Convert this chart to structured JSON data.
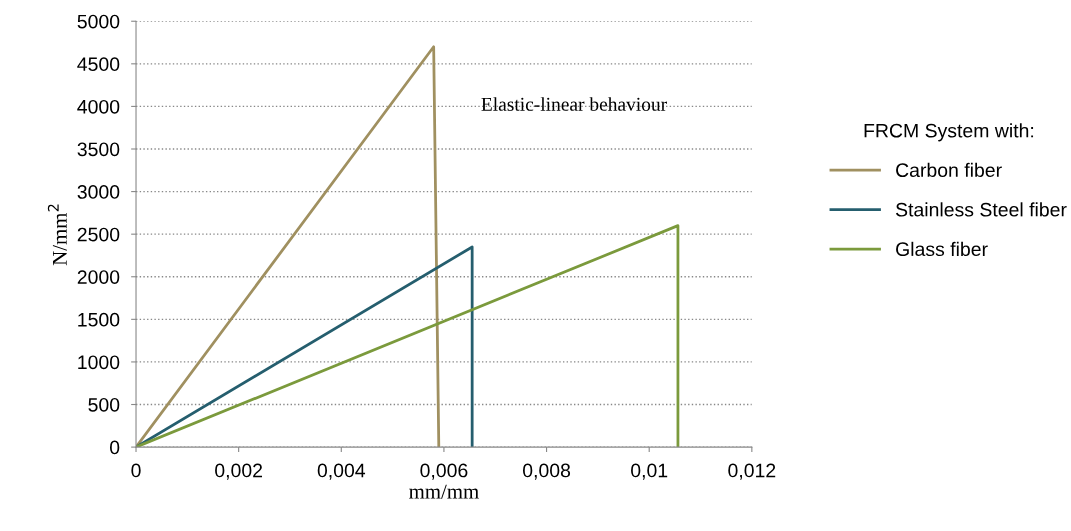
{
  "chart_data": {
    "type": "line",
    "xlabel": "mm/mm",
    "ylabel": "N/mm$^{2}$",
    "legend_title": "FRCM System with:",
    "annotations": [
      "Elastic-linear behaviour"
    ],
    "series": [
      {
        "name": "Carbon fiber",
        "color": "#a09060",
        "x": [
          0,
          0.0058,
          0.0059
        ],
        "values": [
          0,
          4700,
          0
        ]
      },
      {
        "name": "Stainless Steel fiber",
        "color": "#255e6e",
        "x": [
          0,
          0.00655,
          0.00655
        ],
        "values": [
          0,
          2350,
          0
        ]
      },
      {
        "name": "Glass fiber",
        "color": "#7b9a3c",
        "x": [
          0,
          0.01056,
          0.01056
        ],
        "values": [
          0,
          2600,
          0
        ]
      }
    ],
    "xlim": [
      0,
      0.012
    ],
    "xticks": [
      0,
      {
        "value": 0.002,
        "label": "0,002"
      },
      {
        "value": 0.004,
        "label": "0,004"
      },
      {
        "value": 0.006,
        "label": "0,006"
      },
      {
        "value": 0.008,
        "label": "0,008"
      },
      {
        "value": 0.01,
        "label": "0,01"
      },
      {
        "value": 0.012,
        "label": "0,012"
      }
    ],
    "ylim": [
      0,
      5000
    ],
    "yticks": [
      0,
      500,
      1000,
      1500,
      2000,
      2500,
      3000,
      3500,
      4000,
      4500,
      5000
    ],
    "grid": "y",
    "legend": "right",
    "marker": "none",
    "line_style": "solid"
  }
}
